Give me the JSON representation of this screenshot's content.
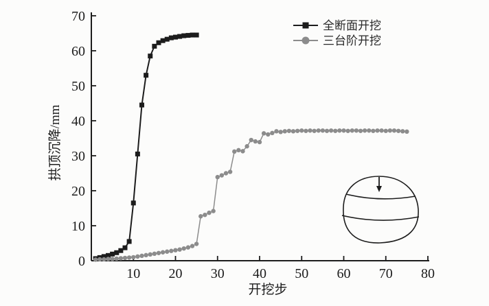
{
  "figure": {
    "background": "#fcfcfb",
    "ink_color": "#1c1c1c"
  },
  "chart_data": {
    "type": "line",
    "title": "",
    "xlabel": "开挖步",
    "ylabel": "拱顶沉降/mm",
    "xlim": [
      0,
      80
    ],
    "ylim": [
      0,
      70
    ],
    "xticks": [
      10,
      20,
      30,
      40,
      50,
      60,
      70,
      80
    ],
    "yticks": [
      0,
      10,
      20,
      30,
      40,
      50,
      60,
      70
    ],
    "grid": false,
    "legend": {
      "position": "upper-right-inside"
    },
    "series": [
      {
        "name": "全断面开挖",
        "marker": "square",
        "color": "#1c1c1c",
        "x": [
          1,
          2,
          3,
          4,
          5,
          6,
          7,
          8,
          9,
          10,
          11,
          12,
          13,
          14,
          15,
          16,
          17,
          18,
          19,
          20,
          21,
          22,
          23,
          24,
          25
        ],
        "y": [
          0.6,
          0.9,
          1.2,
          1.5,
          1.9,
          2.3,
          2.9,
          3.7,
          5.5,
          16.5,
          30.5,
          44.5,
          53.0,
          58.5,
          61.3,
          62.3,
          62.9,
          63.3,
          63.7,
          63.9,
          64.1,
          64.3,
          64.4,
          64.5,
          64.5
        ]
      },
      {
        "name": "三台阶开挖",
        "marker": "circle",
        "color": "#8c8c8c",
        "x": [
          1,
          2,
          3,
          4,
          5,
          6,
          7,
          8,
          9,
          10,
          11,
          12,
          13,
          14,
          15,
          16,
          17,
          18,
          19,
          20,
          21,
          22,
          23,
          24,
          25,
          26,
          27,
          28,
          29,
          30,
          31,
          32,
          33,
          34,
          35,
          36,
          37,
          38,
          39,
          40,
          41,
          42,
          43,
          44,
          45,
          46,
          47,
          48,
          49,
          50,
          51,
          52,
          53,
          54,
          55,
          56,
          57,
          58,
          59,
          60,
          61,
          62,
          63,
          64,
          65,
          66,
          67,
          68,
          69,
          70,
          71,
          72,
          73,
          74,
          75
        ],
        "y": [
          0.3,
          0.4,
          0.4,
          0.5,
          0.5,
          0.6,
          0.7,
          0.8,
          0.9,
          1.0,
          1.2,
          1.4,
          1.6,
          1.8,
          2.0,
          2.2,
          2.4,
          2.6,
          2.8,
          3.0,
          3.2,
          3.5,
          3.8,
          4.2,
          4.8,
          12.7,
          13.1,
          13.7,
          14.2,
          23.9,
          24.4,
          25.0,
          25.4,
          31.2,
          31.6,
          31.3,
          32.7,
          34.5,
          34.1,
          33.9,
          36.4,
          36.1,
          36.5,
          37.0,
          36.8,
          37.0,
          37.1,
          37.0,
          37.1,
          37.2,
          37.1,
          37.2,
          37.1,
          37.2,
          37.2,
          37.1,
          37.2,
          37.1,
          37.2,
          37.2,
          37.1,
          37.2,
          37.2,
          37.1,
          37.2,
          37.2,
          37.1,
          37.2,
          37.2,
          37.1,
          37.2,
          37.2,
          37.1,
          37.0,
          36.9
        ]
      }
    ],
    "inset": {
      "type": "tunnel-cross-section",
      "benches": 3,
      "arrow": "downward-crown-settlement"
    }
  }
}
